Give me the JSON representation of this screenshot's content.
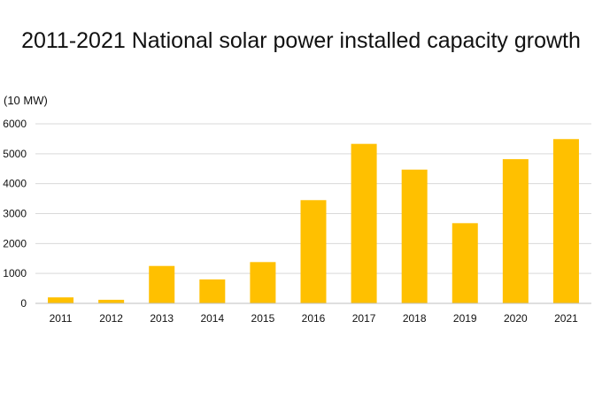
{
  "chart_data": {
    "type": "bar",
    "title": "2011-2021 National solar power installed capacity growth",
    "ylabel": "(10 MW)",
    "xlabel": "",
    "categories": [
      "2011",
      "2012",
      "2013",
      "2014",
      "2015",
      "2016",
      "2017",
      "2018",
      "2019",
      "2020",
      "2021"
    ],
    "values": [
      200,
      120,
      1250,
      800,
      1380,
      3450,
      5330,
      4470,
      2680,
      4820,
      5490
    ],
    "ylim": [
      0,
      6000
    ],
    "yticks": [
      0,
      1000,
      2000,
      3000,
      4000,
      5000,
      6000
    ],
    "grid": true,
    "bar_color": "#FFC000",
    "grid_color": "#d9d9d9",
    "axis_color": "#bfbfbf"
  }
}
